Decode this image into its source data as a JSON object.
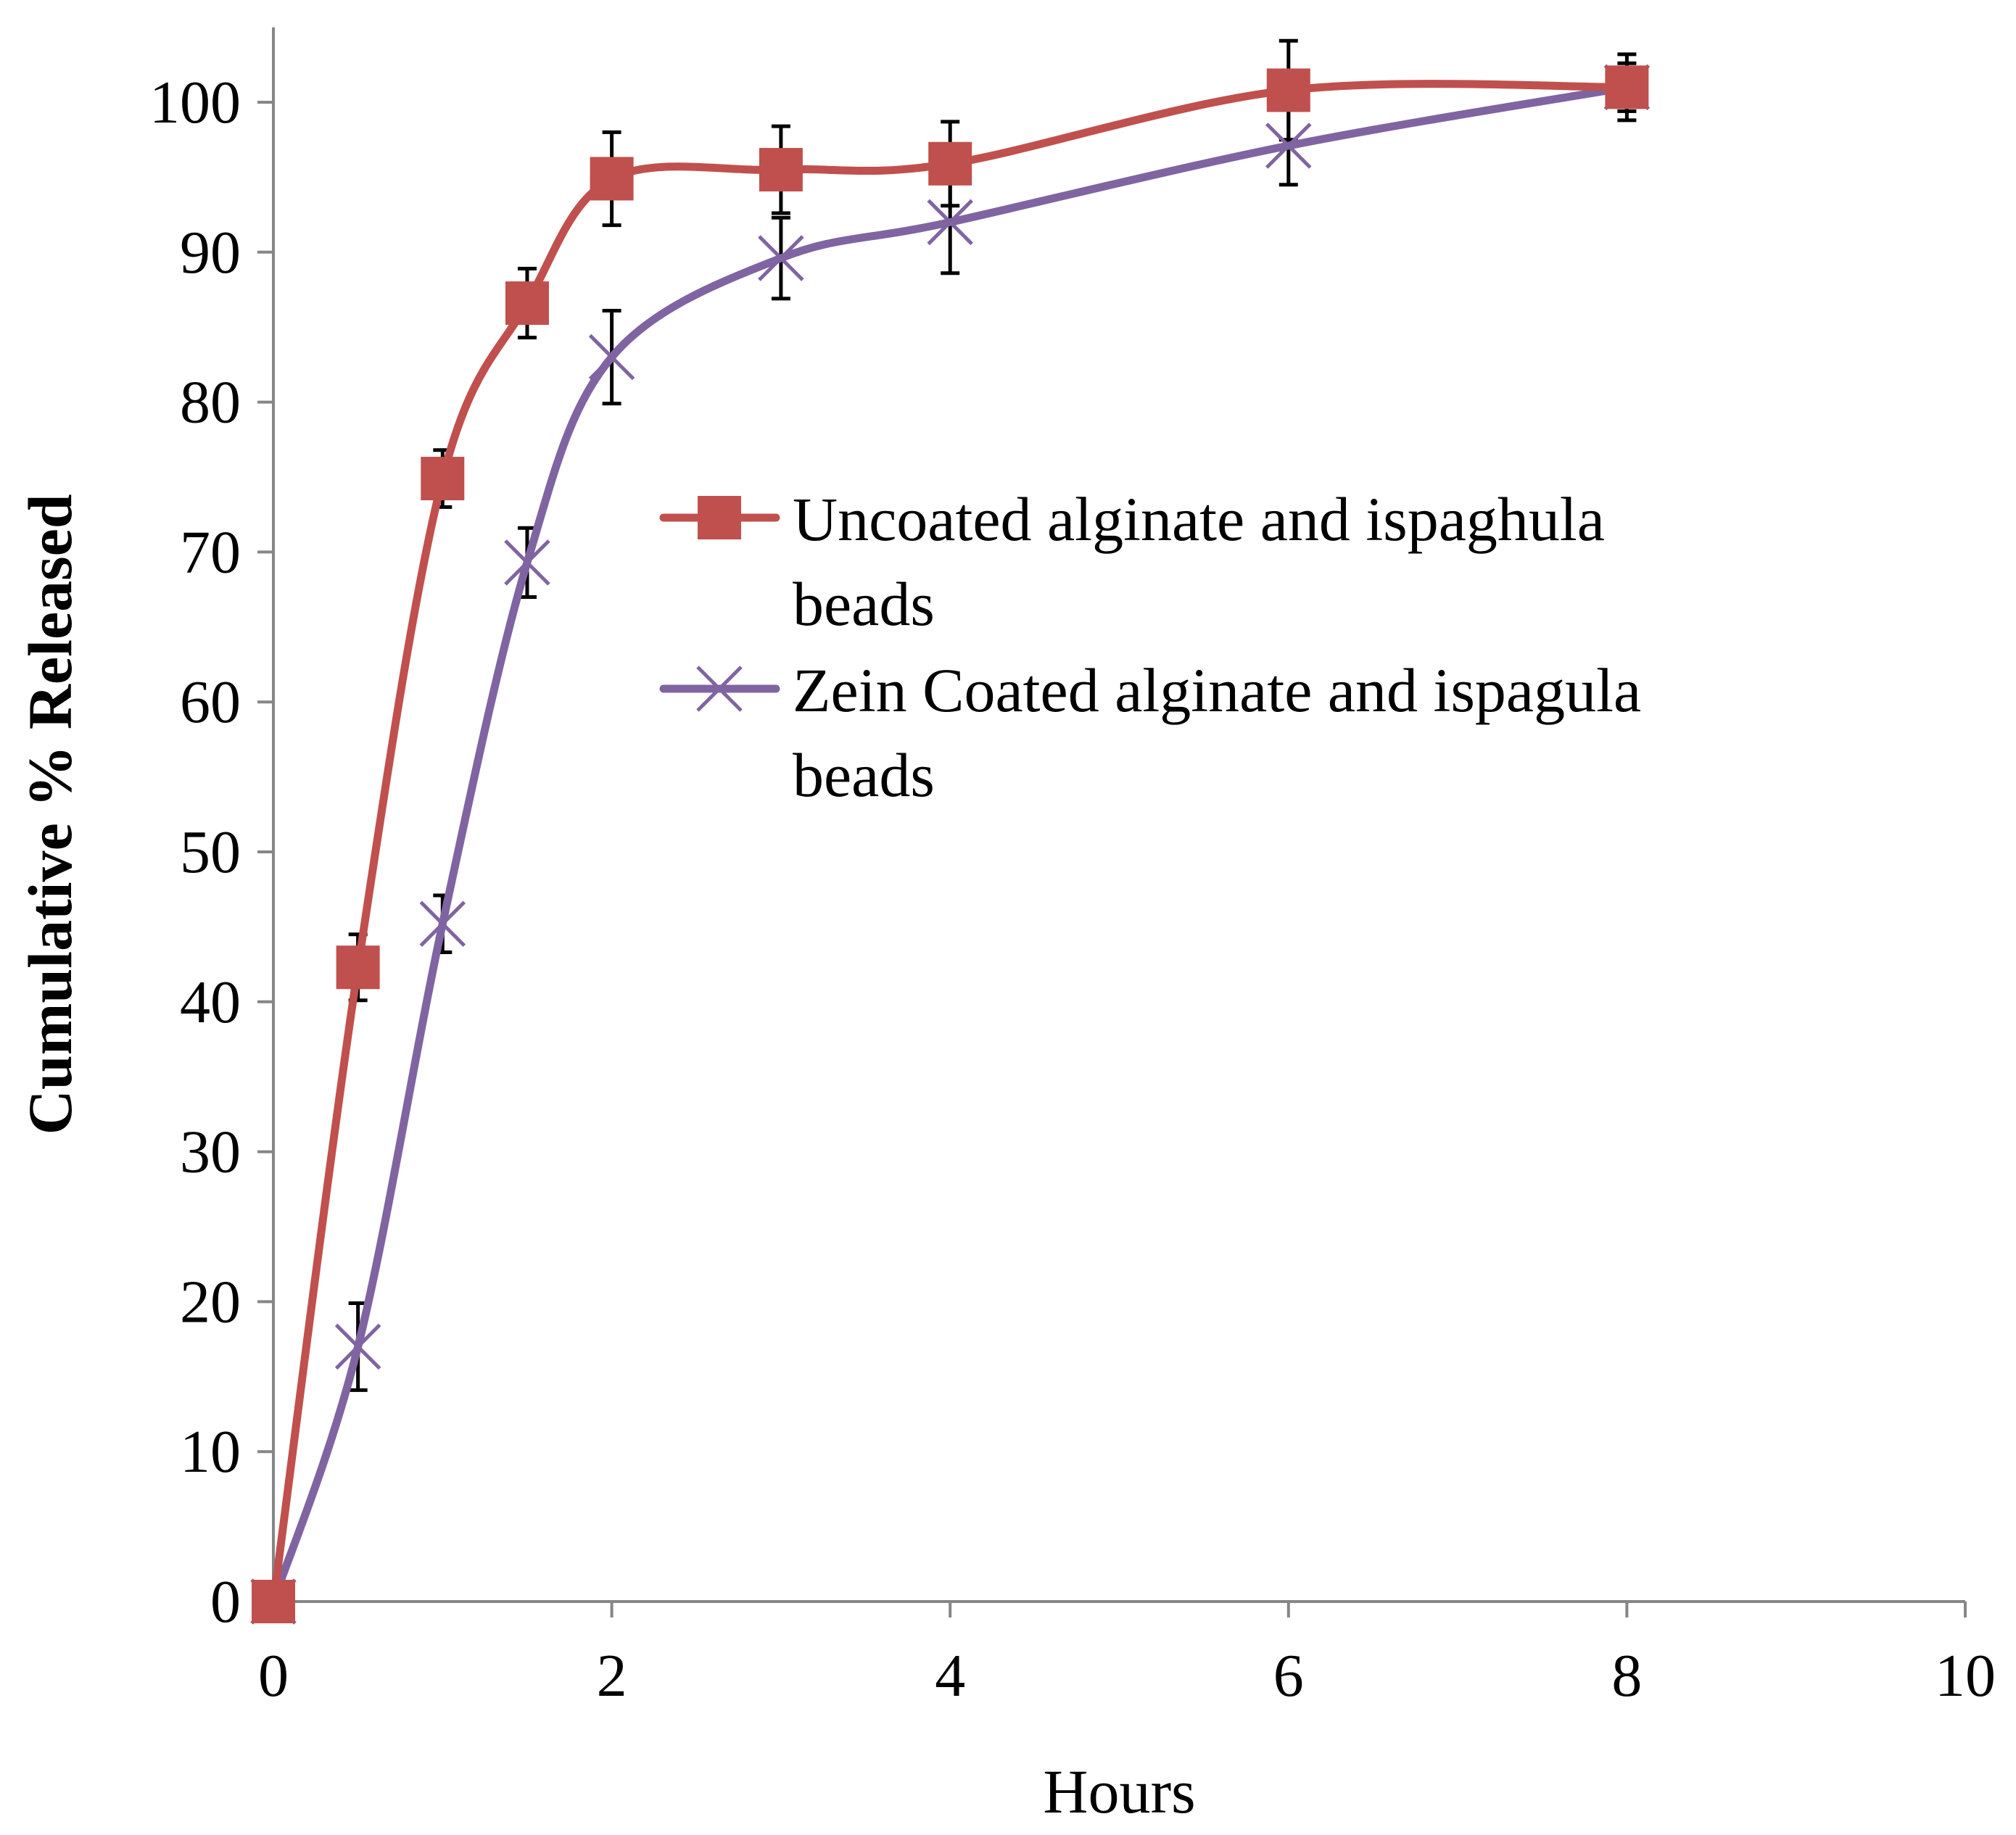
{
  "chart_data": {
    "type": "line",
    "title": "",
    "xlabel": "Hours",
    "ylabel": "Cumulative % Released",
    "xlim": [
      0,
      10
    ],
    "ylim": [
      0,
      105
    ],
    "xticks": [
      0,
      2,
      4,
      6,
      8,
      10
    ],
    "yticks": [
      0,
      10,
      20,
      30,
      40,
      50,
      60,
      70,
      80,
      90,
      100
    ],
    "grid": false,
    "legend_position": "center-right",
    "series": [
      {
        "name": "Uncoated alginate and ispaghula beads",
        "legend_lines": [
          "Uncoated alginate and ispaghula",
          "beads"
        ],
        "color": "#c0504d",
        "marker": "square",
        "x": [
          0,
          0.5,
          1,
          1.5,
          2,
          3,
          4,
          6,
          8
        ],
        "y": [
          0,
          42.3,
          74.9,
          86.6,
          94.9,
          95.5,
          95.9,
          100.8,
          101.0
        ],
        "error": [
          0,
          2.2,
          1.9,
          2.3,
          3.1,
          2.9,
          2.8,
          3.3,
          2.2
        ]
      },
      {
        "name": "Zein Coated alginate and ispagula beads",
        "legend_lines": [
          "Zein Coated alginate and ispagula",
          "beads"
        ],
        "color": "#8064a2",
        "marker": "x",
        "x": [
          0,
          0.5,
          1,
          1.5,
          2,
          3,
          4,
          6,
          8
        ],
        "y": [
          0,
          17.0,
          45.2,
          69.3,
          83.0,
          89.6,
          92.0,
          97.1,
          101.0
        ],
        "error": [
          0,
          2.9,
          1.9,
          2.3,
          3.1,
          2.7,
          3.4,
          2.6,
          1.6
        ]
      }
    ]
  }
}
